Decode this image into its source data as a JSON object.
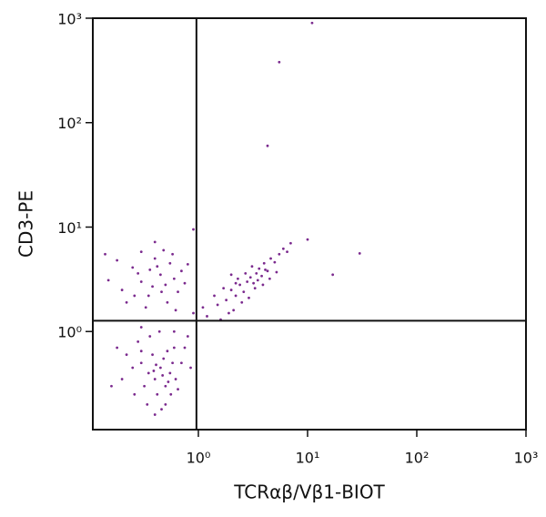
{
  "chart_data": {
    "type": "scatter",
    "x_label": "TCRαβ/Vβ1-BIOT",
    "y_label": "CD3-PE",
    "xlog": true,
    "ylog": true,
    "xlim": [
      0.108,
      1000
    ],
    "ylim": [
      0.115,
      1000
    ],
    "xticks": [
      {
        "value": 1,
        "label": "10⁰"
      },
      {
        "value": 10,
        "label": "10¹"
      },
      {
        "value": 100,
        "label": "10²"
      },
      {
        "value": 1000,
        "label": "10³"
      }
    ],
    "yticks": [
      {
        "value": 1,
        "label": "10⁰"
      },
      {
        "value": 10,
        "label": "10¹"
      },
      {
        "value": 100,
        "label": "10²"
      },
      {
        "value": 1000,
        "label": "10³"
      }
    ],
    "quadrant": {
      "x": 0.96,
      "y": 1.27
    },
    "color": "#7b2a8e",
    "x": [
      0.2,
      0.25,
      0.3,
      0.35,
      0.4,
      0.45,
      0.5,
      0.55,
      0.6,
      0.3,
      0.22,
      0.28,
      0.38,
      0.42,
      0.48,
      0.65,
      0.7,
      0.18,
      0.33,
      0.52,
      0.15,
      0.26,
      0.36,
      0.46,
      0.58,
      0.75,
      0.8,
      0.14,
      0.4,
      0.62,
      0.3,
      0.35,
      0.4,
      0.45,
      0.5,
      0.38,
      0.42,
      0.48,
      0.55,
      0.6,
      0.32,
      0.28,
      0.25,
      0.22,
      0.5,
      0.46,
      0.56,
      0.62,
      0.7,
      0.8,
      0.36,
      0.44,
      0.3,
      0.2,
      0.18,
      0.26,
      0.52,
      0.58,
      0.65,
      0.4,
      0.34,
      0.47,
      0.41,
      0.53,
      0.39,
      0.16,
      0.75,
      0.85,
      0.3,
      0.6,
      1.2,
      1.5,
      1.8,
      2.0,
      2.2,
      2.4,
      2.6,
      2.8,
      3.0,
      3.2,
      3.4,
      3.6,
      3.8,
      4.0,
      4.3,
      4.6,
      5.0,
      5.5,
      6.0,
      6.5,
      2.1,
      2.5,
      1.7,
      2.9,
      3.3,
      2.3,
      2.7,
      3.1,
      3.9,
      4.5,
      1.4,
      1.9,
      2.2,
      3.5,
      4.1,
      5.2,
      7.0,
      1.1,
      1.6,
      2.0,
      11,
      5.5,
      4.3,
      30,
      17,
      10,
      0.9,
      0.9
    ],
    "values": [
      2.5,
      4.1,
      3.0,
      2.2,
      5.0,
      3.5,
      2.8,
      4.5,
      3.2,
      5.8,
      1.9,
      3.6,
      2.7,
      4.2,
      6.0,
      2.4,
      3.8,
      4.8,
      1.7,
      1.9,
      3.1,
      2.2,
      3.9,
      2.4,
      5.5,
      2.9,
      4.4,
      5.5,
      7.2,
      1.6,
      0.5,
      0.4,
      0.35,
      0.45,
      0.3,
      0.6,
      0.25,
      0.55,
      0.4,
      0.7,
      0.3,
      0.8,
      0.45,
      0.6,
      0.2,
      0.18,
      0.25,
      0.35,
      0.5,
      0.9,
      0.9,
      1.0,
      1.1,
      0.35,
      0.7,
      0.25,
      0.65,
      0.5,
      0.28,
      0.16,
      0.2,
      0.38,
      0.48,
      0.33,
      0.42,
      0.3,
      0.7,
      0.45,
      0.65,
      1.0,
      1.4,
      1.8,
      2.0,
      2.5,
      2.2,
      2.8,
      2.4,
      3.0,
      3.3,
      2.9,
      3.6,
      4.0,
      3.4,
      4.5,
      3.8,
      5.0,
      4.6,
      5.5,
      6.2,
      5.8,
      1.6,
      1.9,
      2.6,
      2.1,
      2.6,
      3.2,
      3.6,
      4.2,
      2.8,
      3.2,
      2.2,
      1.5,
      2.9,
      3.1,
      3.9,
      3.7,
      7.0,
      1.7,
      1.3,
      3.5,
      900,
      380,
      60,
      5.6,
      3.5,
      7.6,
      9.5,
      1.5
    ]
  }
}
